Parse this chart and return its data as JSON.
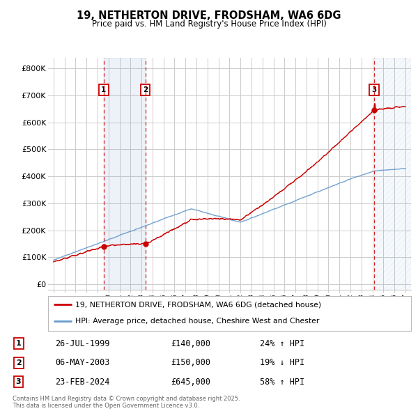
{
  "title": "19, NETHERTON DRIVE, FRODSHAM, WA6 6DG",
  "subtitle": "Price paid vs. HM Land Registry's House Price Index (HPI)",
  "legend_property": "19, NETHERTON DRIVE, FRODSHAM, WA6 6DG (detached house)",
  "legend_hpi": "HPI: Average price, detached house, Cheshire West and Chester",
  "ylabel_ticks": [
    "£0",
    "£100K",
    "£200K",
    "£300K",
    "£400K",
    "£500K",
    "£600K",
    "£700K",
    "£800K"
  ],
  "ylabel_values": [
    0,
    100000,
    200000,
    300000,
    400000,
    500000,
    600000,
    700000,
    800000
  ],
  "xmin": 1994.5,
  "xmax": 2027.5,
  "ymin": -20000,
  "ymax": 840000,
  "transactions": [
    {
      "num": 1,
      "date": "26-JUL-1999",
      "price": 140000,
      "hpi_diff": "24% ↑ HPI",
      "year": 1999.56
    },
    {
      "num": 2,
      "date": "06-MAY-2003",
      "price": 150000,
      "hpi_diff": "19% ↓ HPI",
      "year": 2003.35
    },
    {
      "num": 3,
      "date": "23-FEB-2024",
      "price": 645000,
      "hpi_diff": "58% ↑ HPI",
      "year": 2024.14
    }
  ],
  "property_color": "#cc0000",
  "hpi_color": "#6699cc",
  "background_color": "#ffffff",
  "grid_color": "#cccccc",
  "footnote": "Contains HM Land Registry data © Crown copyright and database right 2025.\nThis data is licensed under the Open Government Licence v3.0.",
  "table_rows": [
    [
      1,
      "26-JUL-1999",
      "£140,000",
      "24% ↑ HPI"
    ],
    [
      2,
      "06-MAY-2003",
      "£150,000",
      "19% ↓ HPI"
    ],
    [
      3,
      "23-FEB-2024",
      "£645,000",
      "58% ↑ HPI"
    ]
  ]
}
